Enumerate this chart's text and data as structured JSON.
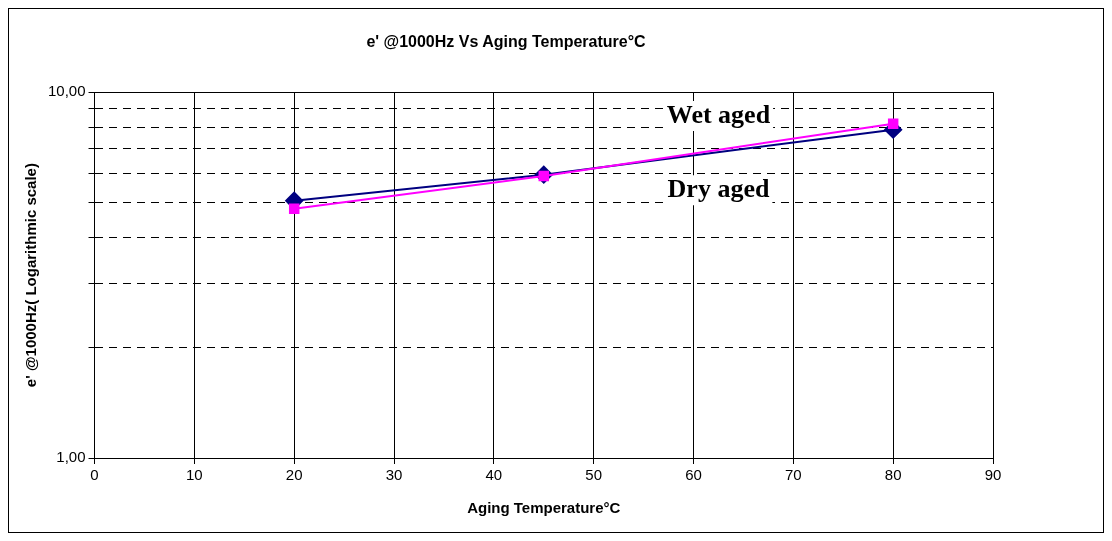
{
  "chart_data": {
    "type": "line",
    "title": "e' @1000Hz Vs Aging Temperature°C",
    "xlabel": "Aging Temperature°C",
    "ylabel": "e' @1000Hz( Logarithmic scale)",
    "x": [
      20,
      45,
      80
    ],
    "series": [
      {
        "name": "Wet aged",
        "color": "#ff00ff",
        "marker": "square",
        "values": [
          4.8,
          5.9,
          8.2
        ]
      },
      {
        "name": "Dry aged",
        "color": "#000080",
        "marker": "diamond",
        "values": [
          5.05,
          5.95,
          7.9
        ]
      }
    ],
    "xlim": [
      0,
      90
    ],
    "xticks": [
      0,
      10,
      20,
      30,
      40,
      50,
      60,
      70,
      80,
      90
    ],
    "ylim": [
      1,
      10
    ],
    "yticks": [
      {
        "value": 1,
        "label": "1,00"
      },
      {
        "value": 2,
        "label": null
      },
      {
        "value": 3,
        "label": null
      },
      {
        "value": 4,
        "label": null
      },
      {
        "value": 5,
        "label": null
      },
      {
        "value": 6,
        "label": null
      },
      {
        "value": 7,
        "label": null
      },
      {
        "value": 8,
        "label": null
      },
      {
        "value": 9,
        "label": null
      },
      {
        "value": 10,
        "label": "10,00"
      }
    ],
    "log": "y",
    "grid": true,
    "legend": false
  }
}
